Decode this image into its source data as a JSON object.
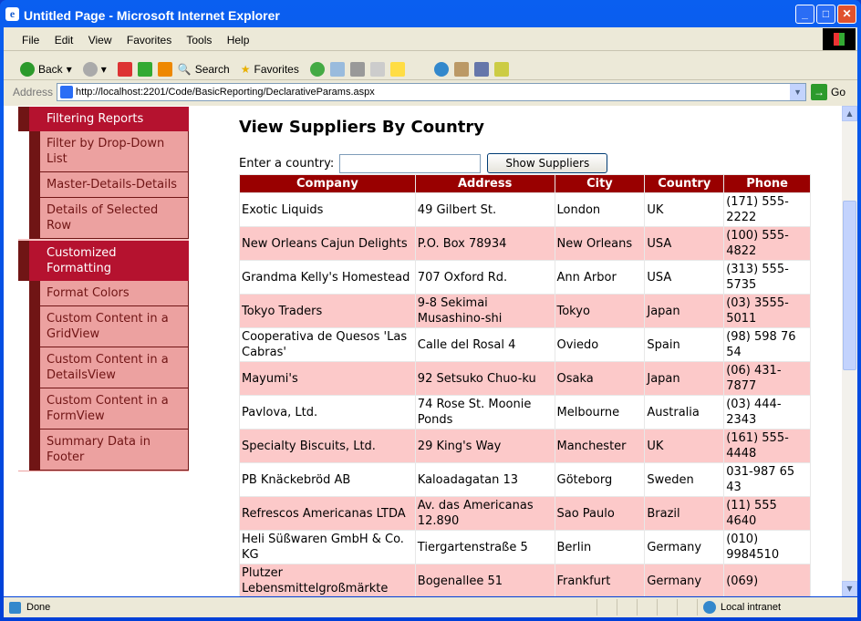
{
  "window": {
    "title": "Untitled Page - Microsoft Internet Explorer"
  },
  "menu": [
    "File",
    "Edit",
    "View",
    "Favorites",
    "Tools",
    "Help"
  ],
  "toolbar": {
    "back": "Back",
    "search": "Search",
    "favorites": "Favorites"
  },
  "address": {
    "label": "Address",
    "url": "http://localhost:2201/Code/BasicReporting/DeclarativeParams.aspx",
    "go": "Go"
  },
  "sidebar": {
    "sections": [
      {
        "title": "Filtering Reports",
        "items": [
          "Filter by Drop-Down List",
          "Master-Details-Details",
          "Details of Selected Row"
        ]
      },
      {
        "title": "Customized Formatting",
        "items": [
          "Format Colors",
          "Custom Content in a GridView",
          "Custom Content in a DetailsView",
          "Custom Content in a FormView",
          "Summary Data in Footer"
        ]
      }
    ]
  },
  "main": {
    "title": "View Suppliers By Country",
    "country_label": "Enter a country:",
    "country_value": "",
    "show_button": "Show Suppliers",
    "columns": [
      "Company",
      "Address",
      "City",
      "Country",
      "Phone"
    ],
    "rows": [
      [
        "Exotic Liquids",
        "49 Gilbert St.",
        "London",
        "UK",
        "(171) 555-2222"
      ],
      [
        "New Orleans Cajun Delights",
        "P.O. Box 78934",
        "New Orleans",
        "USA",
        "(100) 555-4822"
      ],
      [
        "Grandma Kelly's Homestead",
        "707 Oxford Rd.",
        "Ann Arbor",
        "USA",
        "(313) 555-5735"
      ],
      [
        "Tokyo Traders",
        "9-8 Sekimai Musashino-shi",
        "Tokyo",
        "Japan",
        "(03) 3555-5011"
      ],
      [
        "Cooperativa de Quesos 'Las Cabras'",
        "Calle del Rosal 4",
        "Oviedo",
        "Spain",
        "(98) 598 76 54"
      ],
      [
        "Mayumi's",
        "92 Setsuko Chuo-ku",
        "Osaka",
        "Japan",
        "(06) 431-7877"
      ],
      [
        "Pavlova, Ltd.",
        "74 Rose St. Moonie Ponds",
        "Melbourne",
        "Australia",
        "(03) 444-2343"
      ],
      [
        "Specialty Biscuits, Ltd.",
        "29 King's Way",
        "Manchester",
        "UK",
        "(161) 555-4448"
      ],
      [
        "PB Knäckebröd AB",
        "Kaloadagatan 13",
        "Göteborg",
        "Sweden",
        "031-987 65 43"
      ],
      [
        "Refrescos Americanas LTDA",
        "Av. das Americanas 12.890",
        "Sao Paulo",
        "Brazil",
        "(11) 555 4640"
      ],
      [
        "Heli Süßwaren GmbH & Co. KG",
        "Tiergartenstraße 5",
        "Berlin",
        "Germany",
        "(010) 9984510"
      ],
      [
        "Plutzer Lebensmittelgroßmärkte",
        "Bogenallee 51",
        "Frankfurt",
        "Germany",
        "(069)"
      ]
    ]
  },
  "status": {
    "text": "Done",
    "zone": "Local intranet"
  },
  "colors": {
    "header": "#990000",
    "alt_row": "#fcc9c9",
    "nav_header": "#b5122f",
    "nav_item": "#eca1a0",
    "nav_dark": "#701515"
  }
}
